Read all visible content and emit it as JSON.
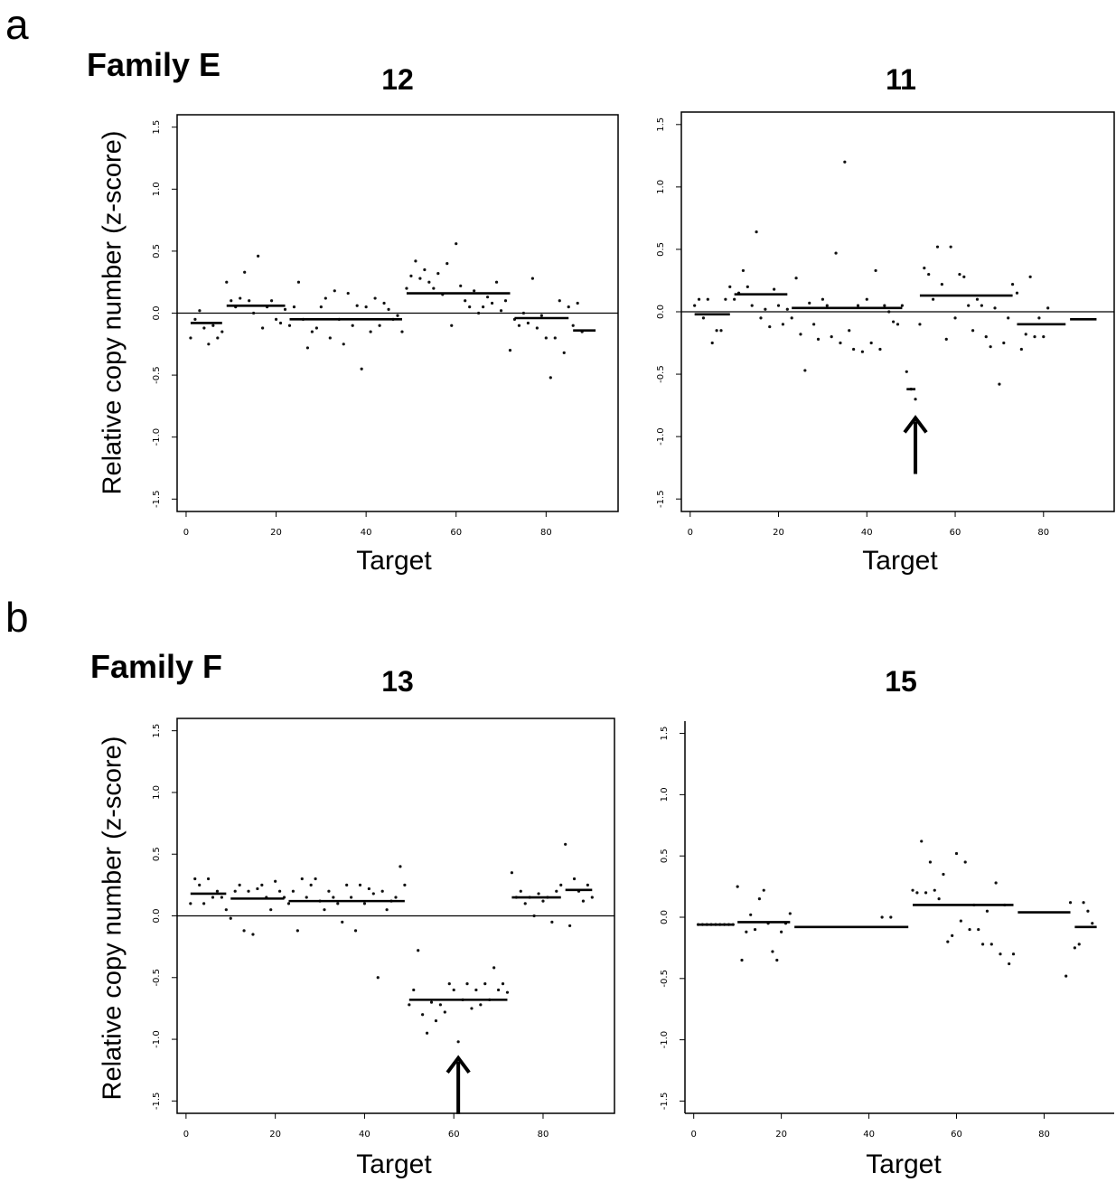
{
  "panels": [
    {
      "letter": "a",
      "family": "Family E"
    },
    {
      "letter": "b",
      "family": "Family F"
    }
  ],
  "y_axis_label": "Relative copy number (z-score)",
  "colors": {
    "points": "#111111",
    "segments": "#000000",
    "zero_line": "#000000",
    "arrow": "#000000"
  },
  "chart_data": [
    {
      "type": "scatter",
      "title": "12",
      "xlabel": "Target",
      "ylabel": "Relative copy number (z-score)",
      "xlim": [
        -2,
        96
      ],
      "ylim": [
        -1.6,
        1.6
      ],
      "xticks": [
        0,
        20,
        40,
        60,
        80
      ],
      "yticks": [
        -1.5,
        -1.0,
        -0.5,
        0.0,
        0.5,
        1.0,
        1.5
      ],
      "zero_line": true,
      "points": [
        [
          1,
          -0.2
        ],
        [
          2,
          -0.05
        ],
        [
          3,
          0.02
        ],
        [
          4,
          -0.12
        ],
        [
          5,
          -0.25
        ],
        [
          6,
          -0.1
        ],
        [
          7,
          -0.2
        ],
        [
          8,
          -0.15
        ],
        [
          9,
          0.25
        ],
        [
          10,
          0.1
        ],
        [
          11,
          0.05
        ],
        [
          12,
          0.12
        ],
        [
          13,
          0.33
        ],
        [
          14,
          0.1
        ],
        [
          15,
          0.0
        ],
        [
          16,
          0.46
        ],
        [
          17,
          -0.12
        ],
        [
          18,
          0.05
        ],
        [
          19,
          0.1
        ],
        [
          20,
          -0.05
        ],
        [
          21,
          -0.08
        ],
        [
          22,
          0.03
        ],
        [
          23,
          -0.1
        ],
        [
          24,
          0.05
        ],
        [
          25,
          0.25
        ],
        [
          26,
          -0.05
        ],
        [
          27,
          -0.28
        ],
        [
          28,
          -0.15
        ],
        [
          29,
          -0.12
        ],
        [
          30,
          0.05
        ],
        [
          31,
          0.12
        ],
        [
          32,
          -0.2
        ],
        [
          33,
          0.18
        ],
        [
          34,
          -0.05
        ],
        [
          35,
          -0.25
        ],
        [
          36,
          0.16
        ],
        [
          37,
          -0.1
        ],
        [
          38,
          0.06
        ],
        [
          39,
          -0.45
        ],
        [
          40,
          0.05
        ],
        [
          41,
          -0.15
        ],
        [
          42,
          0.12
        ],
        [
          43,
          -0.1
        ],
        [
          44,
          0.08
        ],
        [
          45,
          0.03
        ],
        [
          46,
          -0.05
        ],
        [
          47,
          -0.02
        ],
        [
          48,
          -0.15
        ],
        [
          49,
          0.2
        ],
        [
          50,
          0.3
        ],
        [
          51,
          0.42
        ],
        [
          52,
          0.28
        ],
        [
          53,
          0.35
        ],
        [
          54,
          0.25
        ],
        [
          55,
          0.2
        ],
        [
          56,
          0.32
        ],
        [
          57,
          0.15
        ],
        [
          58,
          0.4
        ],
        [
          59,
          -0.1
        ],
        [
          60,
          0.56
        ],
        [
          61,
          0.22
        ],
        [
          62,
          0.1
        ],
        [
          63,
          0.05
        ],
        [
          64,
          0.18
        ],
        [
          65,
          0.0
        ],
        [
          66,
          0.05
        ],
        [
          67,
          0.13
        ],
        [
          68,
          0.08
        ],
        [
          69,
          0.25
        ],
        [
          70,
          0.02
        ],
        [
          71,
          0.1
        ],
        [
          72,
          -0.3
        ],
        [
          73,
          -0.05
        ],
        [
          74,
          -0.1
        ],
        [
          75,
          0.0
        ],
        [
          76,
          -0.08
        ],
        [
          77,
          0.28
        ],
        [
          78,
          -0.12
        ],
        [
          79,
          -0.02
        ],
        [
          80,
          -0.2
        ],
        [
          81,
          -0.52
        ],
        [
          82,
          -0.2
        ],
        [
          83,
          0.1
        ],
        [
          84,
          -0.32
        ],
        [
          85,
          0.05
        ],
        [
          86,
          -0.1
        ],
        [
          87,
          0.08
        ],
        [
          88,
          -0.15
        ]
      ],
      "segments": [
        [
          1,
          8,
          -0.08
        ],
        [
          9,
          22,
          0.06
        ],
        [
          23,
          48,
          -0.05
        ],
        [
          49,
          72,
          0.16
        ],
        [
          73,
          85,
          -0.04
        ],
        [
          86,
          91,
          -0.14
        ]
      ]
    },
    {
      "type": "scatter",
      "title": "11",
      "xlabel": "Target",
      "ylabel": "",
      "xlim": [
        -2,
        96
      ],
      "ylim": [
        -1.6,
        1.6
      ],
      "xticks": [
        0,
        20,
        40,
        60,
        80
      ],
      "yticks": [
        -1.5,
        -1.0,
        -0.5,
        0.0,
        0.5,
        1.0,
        1.5
      ],
      "zero_line": true,
      "arrow_at": [
        51,
        -0.72
      ],
      "points": [
        [
          1,
          0.05
        ],
        [
          2,
          0.1
        ],
        [
          3,
          -0.05
        ],
        [
          4,
          0.1
        ],
        [
          5,
          -0.25
        ],
        [
          6,
          -0.15
        ],
        [
          7,
          -0.15
        ],
        [
          8,
          0.1
        ],
        [
          9,
          0.2
        ],
        [
          10,
          0.1
        ],
        [
          11,
          0.15
        ],
        [
          12,
          0.33
        ],
        [
          13,
          0.2
        ],
        [
          14,
          0.05
        ],
        [
          15,
          0.64
        ],
        [
          16,
          -0.05
        ],
        [
          17,
          0.02
        ],
        [
          18,
          -0.12
        ],
        [
          19,
          0.18
        ],
        [
          20,
          0.05
        ],
        [
          21,
          -0.1
        ],
        [
          22,
          0.02
        ],
        [
          23,
          -0.05
        ],
        [
          24,
          0.27
        ],
        [
          25,
          -0.18
        ],
        [
          26,
          -0.47
        ],
        [
          27,
          0.07
        ],
        [
          28,
          -0.1
        ],
        [
          29,
          -0.22
        ],
        [
          30,
          0.1
        ],
        [
          31,
          0.05
        ],
        [
          32,
          -0.2
        ],
        [
          33,
          0.47
        ],
        [
          34,
          -0.25
        ],
        [
          35,
          1.2
        ],
        [
          36,
          -0.15
        ],
        [
          37,
          -0.3
        ],
        [
          38,
          0.05
        ],
        [
          39,
          -0.32
        ],
        [
          40,
          0.1
        ],
        [
          41,
          -0.25
        ],
        [
          42,
          0.33
        ],
        [
          43,
          -0.3
        ],
        [
          44,
          0.05
        ],
        [
          45,
          0.0
        ],
        [
          46,
          -0.08
        ],
        [
          47,
          -0.1
        ],
        [
          48,
          0.05
        ],
        [
          49,
          -0.48
        ],
        [
          50,
          -0.62
        ],
        [
          51,
          -0.7
        ],
        [
          52,
          -0.1
        ],
        [
          53,
          0.35
        ],
        [
          54,
          0.3
        ],
        [
          55,
          0.1
        ],
        [
          56,
          0.52
        ],
        [
          57,
          0.22
        ],
        [
          58,
          -0.22
        ],
        [
          59,
          0.52
        ],
        [
          60,
          -0.05
        ],
        [
          61,
          0.3
        ],
        [
          62,
          0.28
        ],
        [
          63,
          0.05
        ],
        [
          64,
          -0.15
        ],
        [
          65,
          0.1
        ],
        [
          66,
          0.05
        ],
        [
          67,
          -0.2
        ],
        [
          68,
          -0.28
        ],
        [
          69,
          0.03
        ],
        [
          70,
          -0.58
        ],
        [
          71,
          -0.25
        ],
        [
          72,
          -0.05
        ],
        [
          73,
          0.22
        ],
        [
          74,
          0.15
        ],
        [
          75,
          -0.3
        ],
        [
          76,
          -0.18
        ],
        [
          77,
          0.28
        ],
        [
          78,
          -0.2
        ],
        [
          79,
          -0.05
        ],
        [
          80,
          -0.2
        ],
        [
          81,
          0.03
        ]
      ],
      "segments": [
        [
          1,
          9,
          -0.02
        ],
        [
          10,
          22,
          0.14
        ],
        [
          23,
          48,
          0.03
        ],
        [
          49,
          51,
          -0.62
        ],
        [
          52,
          73,
          0.13
        ],
        [
          74,
          85,
          -0.1
        ],
        [
          86,
          92,
          -0.06
        ]
      ]
    },
    {
      "type": "scatter",
      "title": "13",
      "xlabel": "Target",
      "ylabel": "Relative copy number (z-score)",
      "xlim": [
        -2,
        96
      ],
      "ylim": [
        -1.6,
        1.6
      ],
      "xticks": [
        0,
        20,
        40,
        60,
        80
      ],
      "yticks": [
        -1.5,
        -1.0,
        -0.5,
        0.0,
        0.5,
        1.0,
        1.5
      ],
      "zero_line": true,
      "arrow_at": [
        61,
        -1.02
      ],
      "points": [
        [
          1,
          0.1
        ],
        [
          2,
          0.3
        ],
        [
          3,
          0.25
        ],
        [
          4,
          0.1
        ],
        [
          5,
          0.3
        ],
        [
          6,
          0.15
        ],
        [
          7,
          0.2
        ],
        [
          8,
          0.15
        ],
        [
          9,
          0.05
        ],
        [
          10,
          -0.02
        ],
        [
          11,
          0.2
        ],
        [
          12,
          0.25
        ],
        [
          13,
          -0.12
        ],
        [
          14,
          0.2
        ],
        [
          15,
          -0.15
        ],
        [
          16,
          0.22
        ],
        [
          17,
          0.25
        ],
        [
          18,
          0.15
        ],
        [
          19,
          0.05
        ],
        [
          20,
          0.28
        ],
        [
          21,
          0.2
        ],
        [
          22,
          0.15
        ],
        [
          23,
          0.1
        ],
        [
          24,
          0.2
        ],
        [
          25,
          -0.12
        ],
        [
          26,
          0.3
        ],
        [
          27,
          0.15
        ],
        [
          28,
          0.25
        ],
        [
          29,
          0.3
        ],
        [
          30,
          0.12
        ],
        [
          31,
          0.05
        ],
        [
          32,
          0.2
        ],
        [
          33,
          0.15
        ],
        [
          34,
          0.1
        ],
        [
          35,
          -0.05
        ],
        [
          36,
          0.25
        ],
        [
          37,
          0.15
        ],
        [
          38,
          -0.12
        ],
        [
          39,
          0.25
        ],
        [
          40,
          0.1
        ],
        [
          41,
          0.22
        ],
        [
          42,
          0.18
        ],
        [
          43,
          -0.5
        ],
        [
          44,
          0.2
        ],
        [
          45,
          0.05
        ],
        [
          46,
          0.12
        ],
        [
          47,
          0.15
        ],
        [
          48,
          0.4
        ],
        [
          49,
          0.25
        ],
        [
          50,
          -0.72
        ],
        [
          51,
          -0.6
        ],
        [
          52,
          -0.28
        ],
        [
          53,
          -0.8
        ],
        [
          54,
          -0.95
        ],
        [
          55,
          -0.7
        ],
        [
          56,
          -0.85
        ],
        [
          57,
          -0.72
        ],
        [
          58,
          -0.78
        ],
        [
          59,
          -0.55
        ],
        [
          60,
          -0.6
        ],
        [
          61,
          -1.02
        ],
        [
          62,
          -0.68
        ],
        [
          63,
          -0.55
        ],
        [
          64,
          -0.75
        ],
        [
          65,
          -0.6
        ],
        [
          66,
          -0.72
        ],
        [
          67,
          -0.55
        ],
        [
          68,
          -0.68
        ],
        [
          69,
          -0.42
        ],
        [
          70,
          -0.6
        ],
        [
          71,
          -0.55
        ],
        [
          72,
          -0.62
        ],
        [
          73,
          0.35
        ],
        [
          74,
          0.15
        ],
        [
          75,
          0.2
        ],
        [
          76,
          0.1
        ],
        [
          77,
          0.15
        ],
        [
          78,
          0.0
        ],
        [
          79,
          0.18
        ],
        [
          80,
          0.12
        ],
        [
          81,
          0.15
        ],
        [
          82,
          -0.05
        ],
        [
          83,
          0.2
        ],
        [
          84,
          0.25
        ],
        [
          85,
          0.58
        ],
        [
          86,
          -0.08
        ],
        [
          87,
          0.3
        ],
        [
          88,
          0.2
        ],
        [
          89,
          0.12
        ],
        [
          90,
          0.25
        ],
        [
          91,
          0.15
        ]
      ],
      "segments": [
        [
          1,
          9,
          0.18
        ],
        [
          10,
          22,
          0.14
        ],
        [
          23,
          49,
          0.12
        ],
        [
          50,
          72,
          -0.68
        ],
        [
          73,
          84,
          0.15
        ],
        [
          85,
          91,
          0.21
        ]
      ]
    },
    {
      "type": "scatter",
      "title": "15",
      "xlabel": "Target",
      "ylabel": "",
      "xlim": [
        -2,
        96
      ],
      "ylim": [
        -1.6,
        1.6
      ],
      "xticks": [
        0,
        20,
        40,
        60,
        80
      ],
      "yticks": [
        -1.5,
        -1.0,
        -0.5,
        0.0,
        0.5,
        1.0,
        1.5
      ],
      "zero_line": false,
      "points": [
        [
          1,
          -0.06
        ],
        [
          2,
          -0.06
        ],
        [
          3,
          -0.06
        ],
        [
          4,
          -0.06
        ],
        [
          5,
          -0.06
        ],
        [
          6,
          -0.06
        ],
        [
          7,
          -0.06
        ],
        [
          8,
          -0.06
        ],
        [
          9,
          -0.06
        ],
        [
          10,
          0.25
        ],
        [
          11,
          -0.35
        ],
        [
          12,
          -0.12
        ],
        [
          13,
          0.02
        ],
        [
          14,
          -0.1
        ],
        [
          15,
          0.15
        ],
        [
          16,
          0.22
        ],
        [
          17,
          -0.05
        ],
        [
          18,
          -0.28
        ],
        [
          19,
          -0.35
        ],
        [
          20,
          -0.12
        ],
        [
          21,
          -0.05
        ],
        [
          22,
          0.03
        ],
        [
          43,
          0.0
        ],
        [
          45,
          0.0
        ],
        [
          50,
          0.22
        ],
        [
          51,
          0.2
        ],
        [
          52,
          0.62
        ],
        [
          53,
          0.2
        ],
        [
          54,
          0.45
        ],
        [
          55,
          0.22
        ],
        [
          56,
          0.15
        ],
        [
          57,
          0.35
        ],
        [
          58,
          -0.2
        ],
        [
          59,
          -0.15
        ],
        [
          60,
          0.52
        ],
        [
          61,
          -0.03
        ],
        [
          62,
          0.45
        ],
        [
          63,
          -0.1
        ],
        [
          64,
          0.1
        ],
        [
          65,
          -0.1
        ],
        [
          66,
          -0.22
        ],
        [
          67,
          0.05
        ],
        [
          68,
          -0.22
        ],
        [
          69,
          0.28
        ],
        [
          70,
          -0.3
        ],
        [
          71,
          0.1
        ],
        [
          72,
          -0.38
        ],
        [
          73,
          -0.3
        ],
        [
          85,
          -0.48
        ],
        [
          86,
          0.12
        ],
        [
          87,
          -0.25
        ],
        [
          88,
          -0.22
        ],
        [
          89,
          0.12
        ],
        [
          90,
          0.05
        ],
        [
          91,
          -0.05
        ]
      ],
      "segments": [
        [
          1,
          9,
          -0.06
        ],
        [
          10,
          22,
          -0.04
        ],
        [
          23,
          49,
          -0.08
        ],
        [
          50,
          73,
          0.1
        ],
        [
          74,
          86,
          0.04
        ],
        [
          87,
          92,
          -0.08
        ]
      ]
    }
  ]
}
